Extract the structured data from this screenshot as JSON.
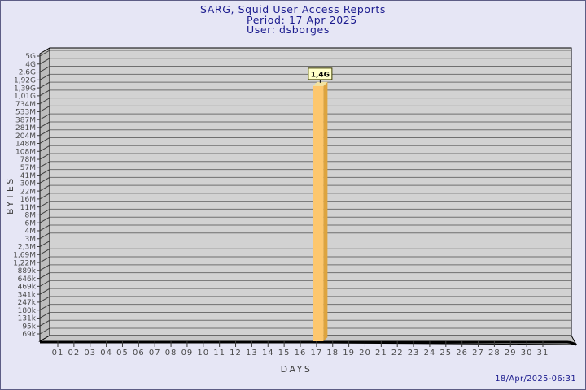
{
  "title": {
    "line1": "SARG, Squid User Access Reports",
    "line2": "Period: 17 Apr 2025",
    "line3": "User: dsborges"
  },
  "footer": {
    "timestamp": "18/Apr/2025-06:31"
  },
  "colors": {
    "page_bg": "#e6e6f5",
    "page_border": "#5d5d85",
    "title_text": "#1b1b8e",
    "timestamp_text": "#1b1b8e",
    "axis_text": "#3c3c3c",
    "tick_text": "#4a4a4a",
    "plot_bg": "#d2d2d2",
    "grid_line": "#6f6f6f",
    "wall_fill": "#bdbdbd",
    "floor_fill": "#c7c7c7",
    "frame_line": "#000000",
    "bar_front": "#fdc76e",
    "bar_side": "#dda43f",
    "bar_top": "#f2e2a0",
    "value_label_bg": "#ffffc8",
    "value_label_border": "#3c3c00",
    "value_label_text": "#000000"
  },
  "chart_data": {
    "type": "bar",
    "title": "SARG, Squid User Access Reports",
    "subtitle_period": "Period: 17 Apr 2025",
    "subtitle_user": "User: dsborges",
    "xlabel": "DAYS",
    "ylabel": "BYTES",
    "y_scale": "log",
    "grid": "horizontal-only",
    "x_categories": [
      "01",
      "02",
      "03",
      "04",
      "05",
      "06",
      "07",
      "08",
      "09",
      "10",
      "11",
      "12",
      "13",
      "14",
      "15",
      "16",
      "17",
      "18",
      "19",
      "20",
      "21",
      "22",
      "23",
      "24",
      "25",
      "26",
      "27",
      "28",
      "29",
      "30",
      "31"
    ],
    "y_ticks": [
      {
        "label": "5G",
        "bytes": 5000000000
      },
      {
        "label": "4G",
        "bytes": 4000000000
      },
      {
        "label": "2,6G",
        "bytes": 2600000000
      },
      {
        "label": "1,92G",
        "bytes": 1920000000
      },
      {
        "label": "1,39G",
        "bytes": 1390000000
      },
      {
        "label": "1,01G",
        "bytes": 1010000000
      },
      {
        "label": "734M",
        "bytes": 734000000
      },
      {
        "label": "533M",
        "bytes": 533000000
      },
      {
        "label": "387M",
        "bytes": 387000000
      },
      {
        "label": "281M",
        "bytes": 281000000
      },
      {
        "label": "204M",
        "bytes": 204000000
      },
      {
        "label": "148M",
        "bytes": 148000000
      },
      {
        "label": "108M",
        "bytes": 108000000
      },
      {
        "label": "78M",
        "bytes": 78000000
      },
      {
        "label": "57M",
        "bytes": 57000000
      },
      {
        "label": "41M",
        "bytes": 41000000
      },
      {
        "label": "30M",
        "bytes": 30000000
      },
      {
        "label": "22M",
        "bytes": 22000000
      },
      {
        "label": "16M",
        "bytes": 16000000
      },
      {
        "label": "11M",
        "bytes": 11000000
      },
      {
        "label": "8M",
        "bytes": 8000000
      },
      {
        "label": "6M",
        "bytes": 6000000
      },
      {
        "label": "4M",
        "bytes": 4000000
      },
      {
        "label": "3M",
        "bytes": 3000000
      },
      {
        "label": "2,3M",
        "bytes": 2300000
      },
      {
        "label": "1,69M",
        "bytes": 1690000
      },
      {
        "label": "1,22M",
        "bytes": 1220000
      },
      {
        "label": "889k",
        "bytes": 889000
      },
      {
        "label": "646k",
        "bytes": 646000
      },
      {
        "label": "469k",
        "bytes": 469000
      },
      {
        "label": "341k",
        "bytes": 341000
      },
      {
        "label": "247k",
        "bytes": 247000
      },
      {
        "label": "180k",
        "bytes": 180000
      },
      {
        "label": "131k",
        "bytes": 131000
      },
      {
        "label": "95k",
        "bytes": 95000
      },
      {
        "label": "69k",
        "bytes": 69000
      }
    ],
    "series": [
      {
        "name": "dsborges",
        "points": [
          {
            "day": "17",
            "value_label": "1,4G",
            "bytes": 1400000000
          }
        ]
      }
    ]
  }
}
